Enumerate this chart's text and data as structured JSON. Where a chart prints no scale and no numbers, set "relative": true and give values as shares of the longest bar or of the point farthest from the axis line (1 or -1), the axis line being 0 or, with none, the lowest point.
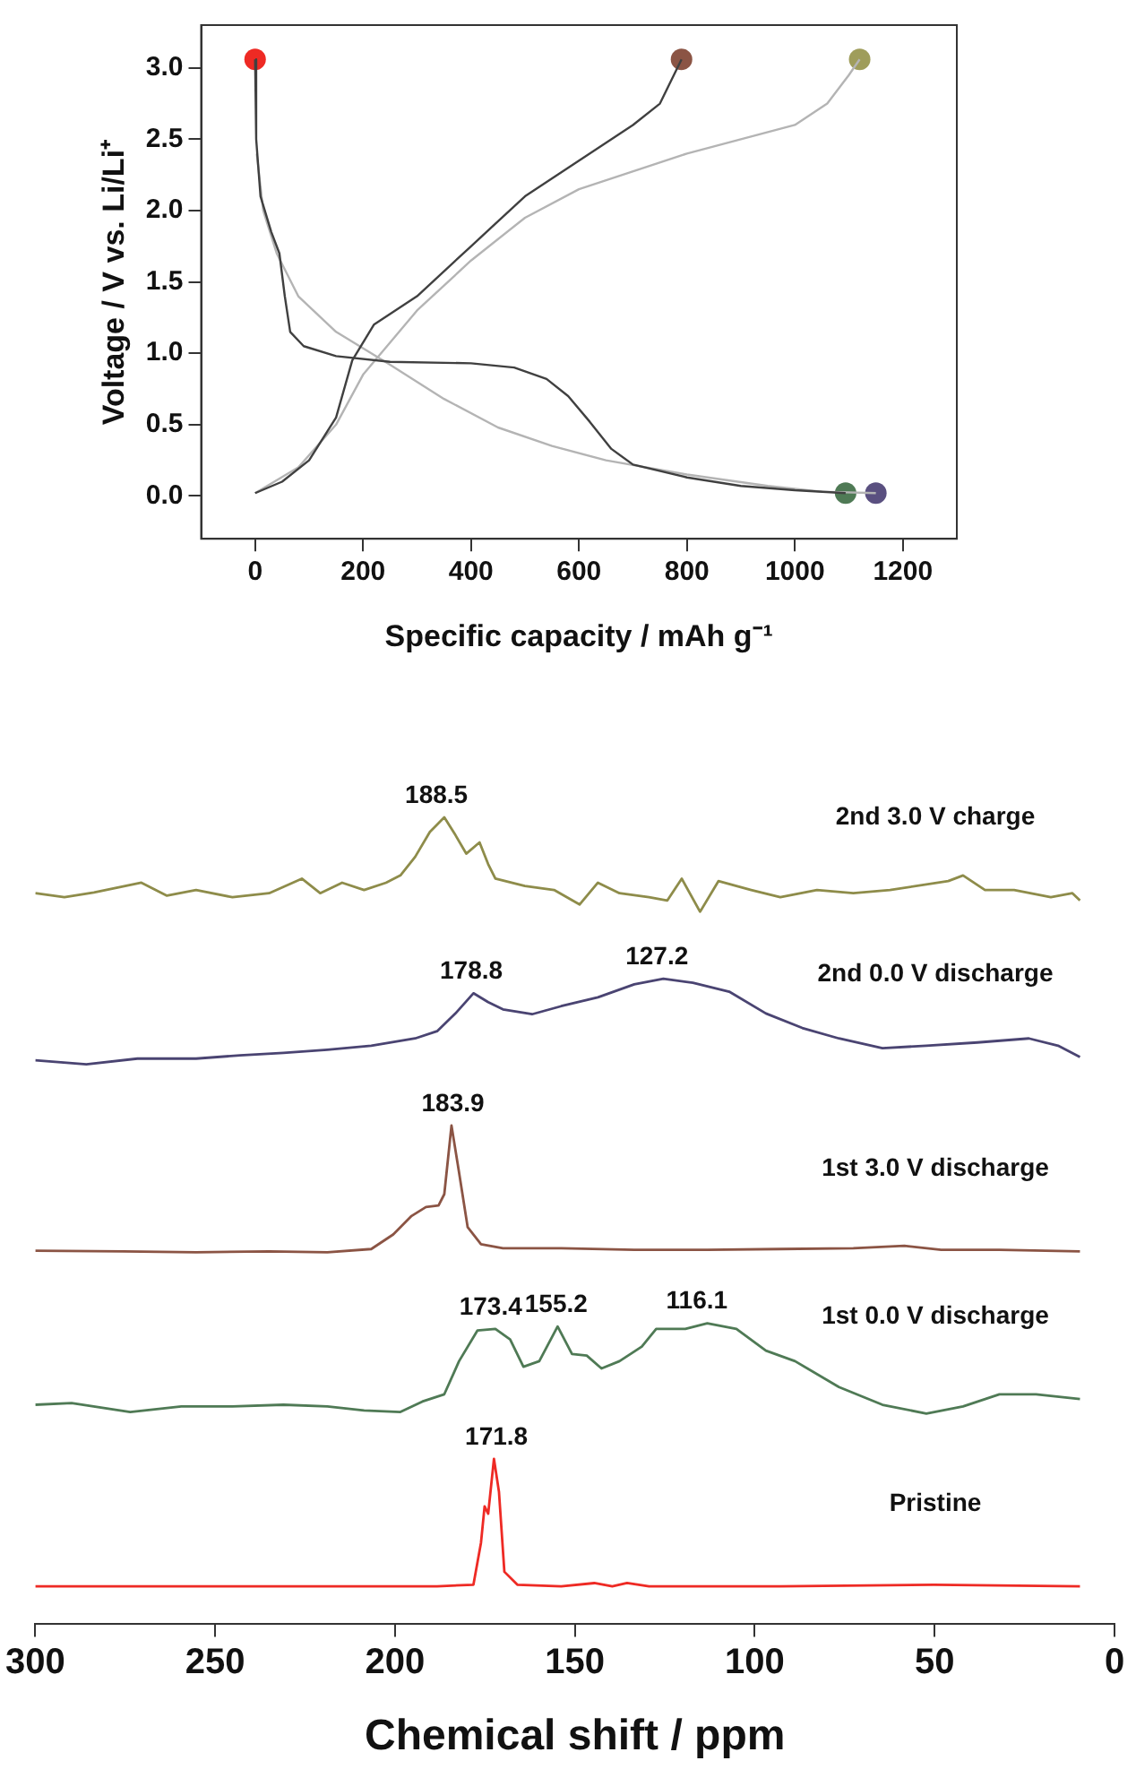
{
  "chart_data": [
    {
      "type": "line",
      "xlabel": "Specific capacity / mAh g⁻¹",
      "ylabel": "Voltage / V vs. Li/Li⁺",
      "xlim": [
        -100,
        1300
      ],
      "ylim": [
        -0.3,
        3.3
      ],
      "xticks": [
        0,
        200,
        400,
        600,
        800,
        1000,
        1200
      ],
      "yticks": [
        {
          "value": 0,
          "label": "0.0"
        },
        {
          "value": 0.5,
          "label": "0.5"
        },
        {
          "value": 1,
          "label": "1.0"
        },
        {
          "value": 1.5,
          "label": "1.5"
        },
        {
          "value": 2,
          "label": "2.0"
        },
        {
          "value": 2.5,
          "label": "2.5"
        },
        {
          "value": 3,
          "label": "3.0"
        }
      ],
      "grid": false,
      "legend": false,
      "series": [
        {
          "color": "#404040",
          "x": [
            0,
            2,
            10,
            30,
            45,
            55,
            65,
            90,
            150,
            250,
            400,
            480,
            540,
            580,
            620,
            660,
            700,
            800,
            900,
            1000,
            1094
          ],
          "values": [
            3.06,
            2.5,
            2.1,
            1.85,
            1.7,
            1.4,
            1.15,
            1.05,
            0.98,
            0.94,
            0.93,
            0.9,
            0.82,
            0.7,
            0.52,
            0.33,
            0.22,
            0.13,
            0.07,
            0.04,
            0.02
          ]
        },
        {
          "color": "#404040",
          "x": [
            0,
            50,
            100,
            150,
            180,
            220,
            300,
            400,
            500,
            600,
            700,
            750,
            790
          ],
          "values": [
            0.02,
            0.1,
            0.25,
            0.55,
            0.95,
            1.2,
            1.4,
            1.75,
            2.1,
            2.35,
            2.6,
            2.75,
            3.06
          ]
        },
        {
          "color": "#b4b4b4",
          "x": [
            3,
            15,
            40,
            80,
            150,
            250,
            350,
            450,
            550,
            650,
            800,
            950,
            1050,
            1150
          ],
          "values": [
            2.4,
            2.0,
            1.7,
            1.4,
            1.15,
            0.92,
            0.68,
            0.48,
            0.35,
            0.25,
            0.15,
            0.07,
            0.03,
            0.02
          ]
        },
        {
          "color": "#b4b4b4",
          "x": [
            0,
            80,
            150,
            200,
            300,
            400,
            500,
            600,
            800,
            900,
            1000,
            1060,
            1100,
            1120
          ],
          "values": [
            0.02,
            0.2,
            0.5,
            0.85,
            1.3,
            1.65,
            1.95,
            2.15,
            2.4,
            2.5,
            2.6,
            2.75,
            2.95,
            3.06
          ]
        },
        {
          "type": "scatter",
          "marker": "circle",
          "color": "#ee2a24",
          "x": [
            0
          ],
          "values": [
            3.06
          ]
        },
        {
          "type": "scatter",
          "marker": "circle",
          "color": "#8b5444",
          "x": [
            790
          ],
          "values": [
            3.06
          ]
        },
        {
          "type": "scatter",
          "marker": "circle",
          "color": "#9f9d5b",
          "x": [
            1120
          ],
          "values": [
            3.06
          ]
        },
        {
          "type": "scatter",
          "marker": "circle",
          "color": "#4f7a55",
          "x": [
            1094
          ],
          "values": [
            0.02
          ]
        },
        {
          "type": "scatter",
          "marker": "circle",
          "color": "#5a5080",
          "x": [
            1150
          ],
          "values": [
            0.02
          ]
        }
      ]
    },
    {
      "type": "line",
      "relative": true,
      "xlabel": "Chemical shift / ppm",
      "xlim": [
        300,
        0
      ],
      "xticks": [
        300,
        250,
        200,
        150,
        100,
        50,
        0
      ],
      "grid": false,
      "legend": false,
      "annotations": [
        {
          "text": "188.5",
          "x": 188.5,
          "y": 1.0
        },
        {
          "text": "178.8",
          "x": 178.8,
          "y": 0.782
        },
        {
          "text": "127.2",
          "x": 127.2,
          "y": 0.8
        },
        {
          "text": "183.9",
          "x": 183.9,
          "y": 0.618
        },
        {
          "text": "173.4",
          "x": 173.4,
          "y": 0.366
        },
        {
          "text": "155.2",
          "x": 155.2,
          "y": 0.369
        },
        {
          "text": "116.1",
          "x": 116.1,
          "y": 0.373
        },
        {
          "text": "171.8",
          "x": 171.8,
          "y": 0.205
        }
      ],
      "series": [
        {
          "name": "2nd 3.0 V charge",
          "color": "#8e8c4a",
          "x": [
            300.0,
            291.9,
            283.7,
            270.5,
            263.4,
            255.3,
            245.2,
            235.0,
            225.9,
            220.8,
            214.7,
            208.6,
            202.5,
            198.5,
            194.4,
            190.3,
            186.3,
            183.2,
            180.2,
            176.5,
            174.1,
            172.1,
            163.9,
            155.8,
            148.7,
            143.6,
            137.6,
            129.4,
            124.3,
            120.3,
            115.2,
            110.1,
            101.0,
            92.9,
            82.7,
            72.6,
            62.4,
            46.2,
            42.1,
            36.0,
            27.9,
            17.7,
            11.7,
            9.6
          ],
          "values": [
            0.906,
            0.901,
            0.907,
            0.919,
            0.903,
            0.91,
            0.901,
            0.906,
            0.924,
            0.906,
            0.919,
            0.91,
            0.919,
            0.928,
            0.951,
            0.982,
            1.0,
            0.978,
            0.955,
            0.969,
            0.942,
            0.924,
            0.915,
            0.91,
            0.892,
            0.919,
            0.906,
            0.901,
            0.897,
            0.924,
            0.883,
            0.921,
            0.91,
            0.901,
            0.91,
            0.906,
            0.91,
            0.921,
            0.928,
            0.91,
            0.91,
            0.901,
            0.906,
            0.897
          ]
        },
        {
          "name": "2nd 0.0 V discharge",
          "color": "#4a4472",
          "x": [
            300.0,
            285.8,
            271.6,
            255.3,
            243.1,
            231.0,
            218.8,
            206.6,
            194.4,
            188.3,
            183.2,
            178.2,
            174.1,
            170.0,
            161.9,
            153.8,
            143.6,
            133.5,
            125.4,
            117.2,
            107.1,
            96.9,
            86.8,
            76.6,
            64.5,
            52.3,
            38.1,
            23.8,
            15.7,
            9.6
          ],
          "values": [
            0.699,
            0.694,
            0.701,
            0.701,
            0.705,
            0.708,
            0.712,
            0.717,
            0.726,
            0.735,
            0.757,
            0.782,
            0.771,
            0.762,
            0.756,
            0.766,
            0.777,
            0.793,
            0.8,
            0.795,
            0.784,
            0.757,
            0.739,
            0.726,
            0.714,
            0.717,
            0.721,
            0.726,
            0.717,
            0.703
          ]
        },
        {
          "name": "1st 3.0 V discharge",
          "color": "#8b5444",
          "x": [
            300.0,
            275.6,
            255.3,
            235.0,
            218.8,
            206.6,
            200.5,
            195.4,
            191.4,
            187.9,
            186.3,
            184.3,
            182.2,
            179.8,
            176.1,
            170.0,
            153.8,
            133.5,
            113.2,
            92.9,
            72.6,
            58.4,
            48.2,
            32.0,
            9.6
          ],
          "values": [
            0.463,
            0.462,
            0.461,
            0.462,
            0.461,
            0.465,
            0.483,
            0.506,
            0.517,
            0.519,
            0.533,
            0.618,
            0.56,
            0.492,
            0.471,
            0.466,
            0.466,
            0.464,
            0.464,
            0.465,
            0.466,
            0.469,
            0.464,
            0.464,
            0.462
          ]
        },
        {
          "name": "1st 0.0 V discharge",
          "color": "#4f7a55",
          "x": [
            300.0,
            289.9,
            273.6,
            259.4,
            245.2,
            231.0,
            218.8,
            208.6,
            198.5,
            192.4,
            186.3,
            182.2,
            177.1,
            172.1,
            168.0,
            164.3,
            159.9,
            154.8,
            150.8,
            146.7,
            142.6,
            137.6,
            131.4,
            127.4,
            119.3,
            113.2,
            105.1,
            96.9,
            88.8,
            76.6,
            64.5,
            52.3,
            42.1,
            32.0,
            21.8,
            9.6
          ],
          "values": [
            0.272,
            0.274,
            0.263,
            0.27,
            0.27,
            0.272,
            0.27,
            0.265,
            0.263,
            0.276,
            0.285,
            0.326,
            0.364,
            0.366,
            0.353,
            0.319,
            0.326,
            0.369,
            0.335,
            0.333,
            0.317,
            0.326,
            0.344,
            0.366,
            0.366,
            0.373,
            0.366,
            0.339,
            0.326,
            0.294,
            0.272,
            0.261,
            0.27,
            0.285,
            0.285,
            0.279
          ]
        },
        {
          "name": "Pristine",
          "color": "#ee2a24",
          "x": [
            300.0,
            255.3,
            214.7,
            188.3,
            178.2,
            176.1,
            175.1,
            174.1,
            172.5,
            171.1,
            169.6,
            166.0,
            153.8,
            144.6,
            139.6,
            135.5,
            129.4,
            92.9,
            50.2,
            9.6
          ],
          "values": [
            0.047,
            0.047,
            0.047,
            0.047,
            0.049,
            0.101,
            0.146,
            0.137,
            0.205,
            0.164,
            0.065,
            0.049,
            0.047,
            0.051,
            0.047,
            0.051,
            0.047,
            0.047,
            0.049,
            0.047
          ]
        }
      ]
    }
  ]
}
